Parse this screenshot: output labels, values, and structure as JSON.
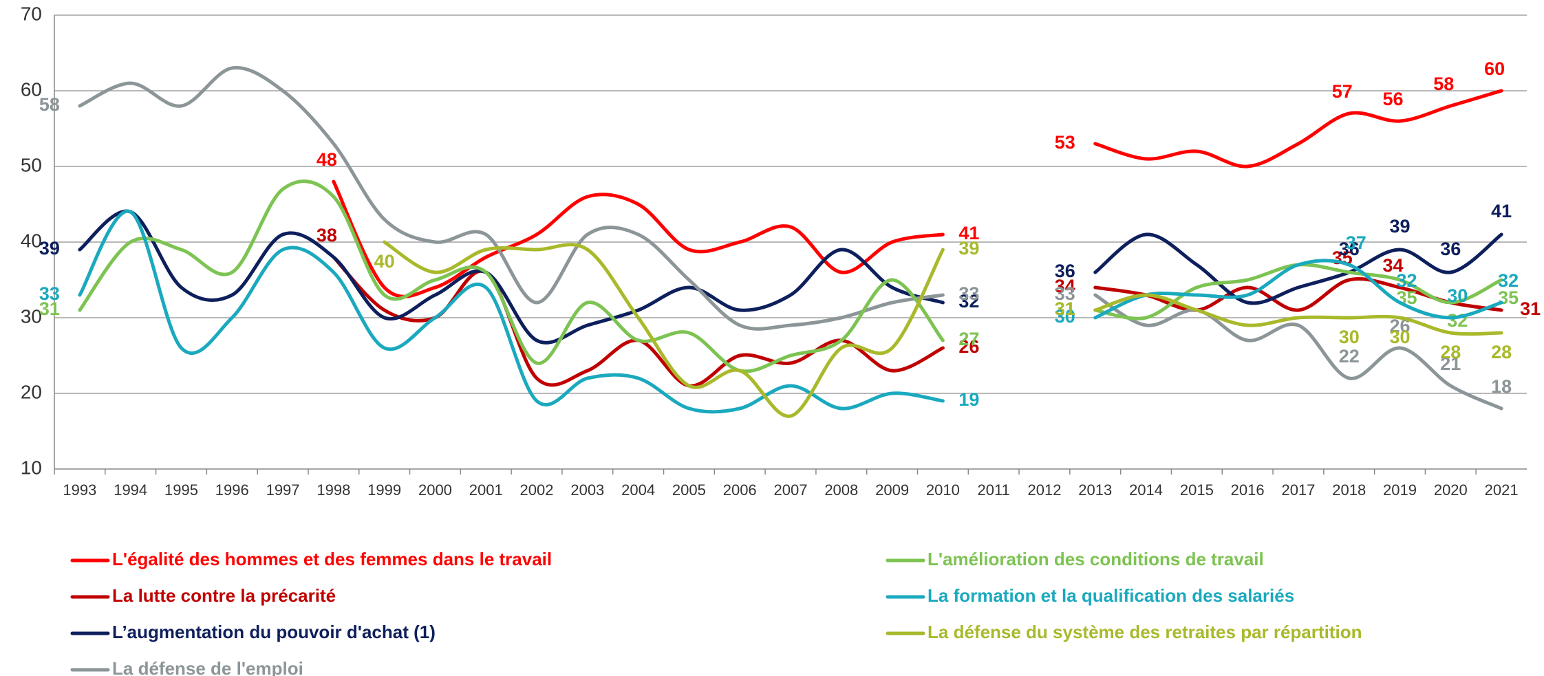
{
  "chart_data": {
    "type": "line",
    "categories": [
      "1993",
      "1994",
      "1995",
      "1996",
      "1997",
      "1998",
      "1999",
      "2000",
      "2001",
      "2002",
      "2003",
      "2004",
      "2005",
      "2006",
      "2007",
      "2008",
      "2009",
      "2010",
      "2011",
      "2012",
      "2013",
      "2014",
      "2015",
      "2016",
      "2017",
      "2018",
      "2019",
      "2020",
      "2021"
    ],
    "ylim": [
      10,
      70
    ],
    "yticks": [
      10,
      20,
      30,
      40,
      50,
      60,
      70
    ],
    "grid": true,
    "series": [
      {
        "name": "L'égalité des hommes et des femmes dans le travail",
        "color": "#ff0000",
        "values": [
          null,
          null,
          null,
          null,
          null,
          48,
          34,
          34,
          38,
          41,
          46,
          45,
          39,
          40,
          42,
          36,
          40,
          41,
          null,
          null,
          53,
          51,
          52,
          50,
          53,
          57,
          56,
          58,
          60
        ]
      },
      {
        "name": "La lutte contre la précarité",
        "color": "#c00000",
        "values": [
          null,
          null,
          null,
          null,
          null,
          38,
          31,
          30,
          36,
          22,
          23,
          27,
          21,
          25,
          24,
          27,
          23,
          26,
          null,
          null,
          34,
          33,
          31,
          34,
          31,
          35,
          34,
          32,
          31
        ]
      },
      {
        "name": "L’augmentation du pouvoir d'achat (1)",
        "color": "#0d1f5c",
        "values": [
          39,
          44,
          34,
          33,
          41,
          38,
          30,
          33,
          36,
          27,
          29,
          31,
          34,
          31,
          33,
          39,
          34,
          32,
          null,
          null,
          36,
          41,
          37,
          32,
          34,
          36,
          39,
          36,
          41
        ]
      },
      {
        "name": "La défense de l'emploi",
        "color": "#8c9598",
        "values": [
          58,
          61,
          58,
          63,
          60,
          53,
          43,
          40,
          41,
          32,
          41,
          41,
          35,
          29,
          29,
          30,
          32,
          33,
          null,
          null,
          33,
          29,
          31,
          27,
          29,
          22,
          26,
          21,
          18
        ]
      },
      {
        "name": "L'amélioration des conditions de travail",
        "color": "#7dc352",
        "values": [
          31,
          40,
          39,
          36,
          47,
          46,
          33,
          35,
          36,
          24,
          32,
          27,
          28,
          23,
          25,
          27,
          35,
          27,
          null,
          null,
          31,
          30,
          34,
          35,
          37,
          36,
          35,
          32,
          35
        ]
      },
      {
        "name": "La formation et la qualification des salariés",
        "color": "#1aa9be",
        "values": [
          33,
          44,
          26,
          30,
          39,
          36,
          26,
          30,
          34,
          19,
          22,
          22,
          18,
          18,
          21,
          18,
          20,
          19,
          null,
          null,
          30,
          33,
          33,
          33,
          37,
          37,
          32,
          30,
          32
        ]
      },
      {
        "name": "La défense du système des retraites par répartition",
        "color": "#a9b92b",
        "values": [
          null,
          null,
          null,
          null,
          null,
          null,
          40,
          36,
          39,
          39,
          39,
          30,
          21,
          23,
          17,
          26,
          26,
          39,
          null,
          null,
          31,
          33,
          31,
          29,
          30,
          30,
          30,
          28,
          28
        ]
      }
    ]
  }
}
